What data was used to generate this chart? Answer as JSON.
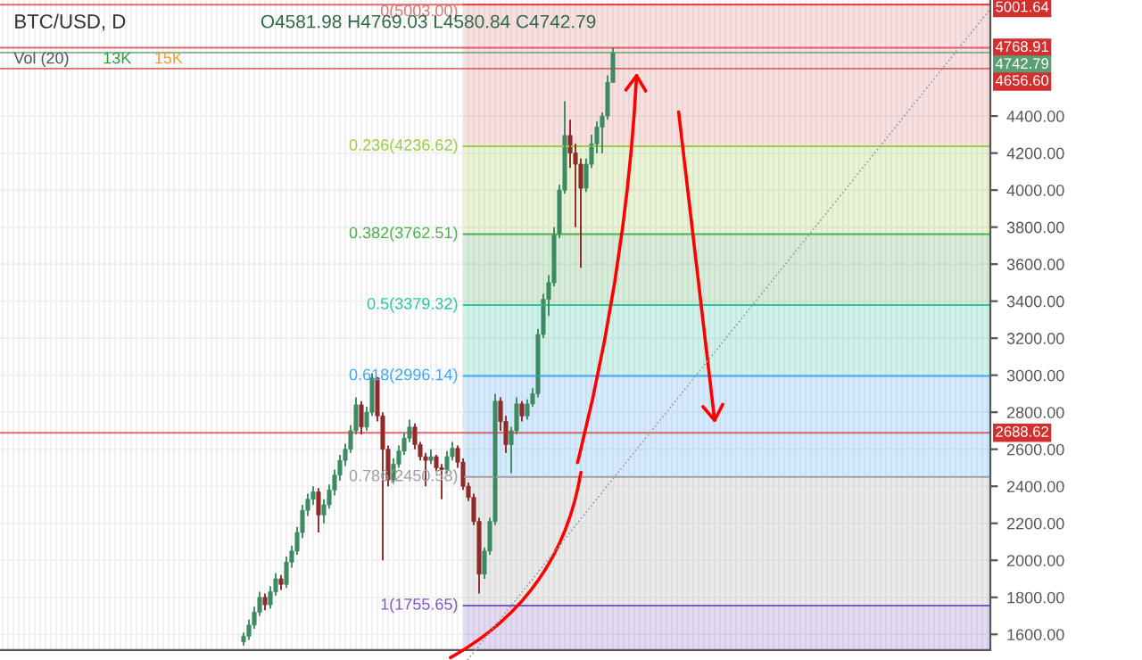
{
  "chart_data": {
    "type": "candlestick",
    "annotations": [
      "BTC/USD, D",
      "O4581.98 H4769.03 L4580.84 C4742.79",
      "Vol (20)",
      "13K",
      "15K"
    ],
    "categories": [
      null,
      null,
      null,
      null,
      null,
      null,
      null,
      null,
      null,
      null,
      null,
      null,
      null,
      null,
      null,
      null,
      null,
      null,
      null,
      null,
      null,
      null,
      null,
      null,
      null,
      null,
      null,
      null,
      null,
      null,
      null,
      null,
      null,
      null,
      null,
      null,
      null,
      null,
      null,
      null,
      null,
      null,
      null,
      null,
      null,
      null,
      null,
      null,
      null,
      null,
      null,
      null,
      null,
      null,
      null,
      null,
      null,
      null,
      null,
      null,
      null,
      null,
      null,
      null,
      null,
      null,
      null,
      null,
      null,
      null,
      null,
      null,
      null,
      null,
      null,
      null,
      null,
      null,
      null,
      null,
      null,
      null,
      null,
      null,
      null,
      null,
      null,
      null,
      null,
      null,
      null,
      null,
      null,
      null,
      null,
      null,
      null,
      null,
      null,
      null,
      null,
      null,
      null,
      null,
      null,
      null,
      null,
      null,
      null,
      null,
      null,
      null,
      null,
      null,
      null,
      null,
      null,
      null,
      null,
      null,
      null,
      null,
      null,
      null,
      null,
      null,
      null,
      null,
      null,
      null,
      null,
      null,
      null,
      null,
      null,
      null,
      null,
      null,
      null,
      null,
      null,
      null,
      null,
      null,
      null,
      null,
      null,
      null,
      null,
      null,
      null,
      null,
      null,
      null,
      null,
      null,
      null,
      null,
      null,
      null,
      null,
      null,
      null,
      null,
      null,
      null,
      null,
      null,
      null,
      null,
      null,
      null,
      null,
      null,
      null,
      null,
      null,
      null,
      null,
      null,
      null,
      null,
      null,
      null,
      null
    ],
    "ohlc": [
      null,
      null,
      null,
      null,
      null,
      null,
      null,
      null,
      null,
      null,
      null,
      null,
      null,
      null,
      null,
      null,
      null,
      null,
      null,
      null,
      null,
      null,
      null,
      null,
      null,
      null,
      null,
      null,
      null,
      null,
      null,
      null,
      null,
      null,
      null,
      null,
      null,
      null,
      null,
      null,
      null,
      null,
      null,
      null,
      null,
      [
        1560,
        1610,
        1540,
        1590
      ],
      [
        1590,
        1680,
        1570,
        1650
      ],
      [
        1650,
        1750,
        1630,
        1720
      ],
      [
        1720,
        1830,
        1700,
        1800
      ],
      [
        1800,
        1820,
        1730,
        1760
      ],
      [
        1760,
        1860,
        1740,
        1830
      ],
      [
        1830,
        1930,
        1810,
        1900
      ],
      [
        1900,
        1920,
        1840,
        1870
      ],
      [
        1870,
        2020,
        1850,
        1990
      ],
      [
        1990,
        2080,
        1960,
        2050
      ],
      [
        2050,
        2180,
        2030,
        2150
      ],
      [
        2150,
        2300,
        2120,
        2270
      ],
      [
        2270,
        2360,
        2240,
        2330
      ],
      [
        2330,
        2400,
        2300,
        2370
      ],
      [
        2370,
        2390,
        2150,
        2245
      ],
      [
        2245,
        2330,
        2200,
        2300
      ],
      [
        2300,
        2410,
        2280,
        2380
      ],
      [
        2380,
        2490,
        2350,
        2460
      ],
      [
        2460,
        2570,
        2430,
        2540
      ],
      [
        2540,
        2630,
        2510,
        2600
      ],
      [
        2600,
        2730,
        2580,
        2700
      ],
      [
        2700,
        2880,
        2680,
        2840
      ],
      [
        2840,
        2860,
        2680,
        2720
      ],
      [
        2720,
        2830,
        2700,
        2800
      ],
      [
        2800,
        3010,
        2780,
        2985
      ],
      [
        2985,
        2990,
        2750,
        2780
      ],
      [
        2780,
        2800,
        2000,
        2600
      ],
      [
        2600,
        2620,
        2400,
        2435
      ],
      [
        2435,
        2550,
        2420,
        2520
      ],
      [
        2520,
        2620,
        2500,
        2590
      ],
      [
        2590,
        2690,
        2570,
        2660
      ],
      [
        2660,
        2760,
        2640,
        2720
      ],
      [
        2720,
        2740,
        2600,
        2625
      ],
      [
        2625,
        2640,
        2540,
        2560
      ],
      [
        2560,
        2580,
        2400,
        2540
      ],
      [
        2540,
        2600,
        2520,
        2560
      ],
      [
        2560,
        2570,
        2480,
        2500
      ],
      [
        2500,
        2520,
        2330,
        2490
      ],
      [
        2490,
        2590,
        2470,
        2560
      ],
      [
        2560,
        2640,
        2540,
        2605
      ],
      [
        2605,
        2620,
        2500,
        2530
      ],
      [
        2530,
        2550,
        2380,
        2400
      ],
      [
        2400,
        2420,
        2320,
        2340
      ],
      [
        2340,
        2360,
        2190,
        2210
      ],
      [
        2210,
        2230,
        1820,
        1925
      ],
      [
        1925,
        2070,
        1900,
        2050
      ],
      [
        2050,
        2230,
        2030,
        2210
      ],
      [
        2210,
        2900,
        2190,
        2860
      ],
      [
        2860,
        2880,
        2700,
        2750
      ],
      [
        2750,
        2780,
        2580,
        2625
      ],
      [
        2625,
        2720,
        2470,
        2700
      ],
      [
        2700,
        2880,
        2680,
        2845
      ],
      [
        2845,
        2860,
        2750,
        2780
      ],
      [
        2780,
        2870,
        2760,
        2845
      ],
      [
        2845,
        2930,
        2830,
        2900
      ],
      [
        2900,
        3250,
        2880,
        3220
      ],
      [
        3220,
        3440,
        3200,
        3410
      ],
      [
        3410,
        3540,
        3320,
        3500
      ],
      [
        3500,
        3800,
        3480,
        3760
      ],
      [
        3760,
        4030,
        3740,
        4000
      ],
      [
        4000,
        4480,
        3980,
        4295
      ],
      [
        4295,
        4380,
        4120,
        4200
      ],
      [
        4200,
        4250,
        3800,
        4140
      ],
      [
        4140,
        4170,
        3580,
        4010
      ],
      [
        4010,
        4170,
        3990,
        4140
      ],
      [
        4140,
        4300,
        4120,
        4250
      ],
      [
        4250,
        4370,
        4200,
        4340
      ],
      [
        4340,
        4420,
        4200,
        4400
      ],
      [
        4400,
        4620,
        4380,
        4581.98
      ],
      [
        4581.98,
        4769.03,
        4580.84,
        4742.79
      ],
      null,
      null,
      null,
      null,
      null,
      null,
      null,
      null,
      null,
      null,
      null,
      null,
      null,
      null,
      null,
      null,
      null,
      null,
      null,
      null,
      null,
      null,
      null,
      null,
      null,
      null,
      null,
      null,
      null,
      null,
      null,
      null,
      null,
      null,
      null,
      null,
      null,
      null,
      null,
      null,
      null,
      null,
      null,
      null,
      null,
      null,
      null,
      null,
      null,
      null,
      null,
      null,
      null,
      null,
      null,
      null,
      null,
      null,
      null,
      null,
      null,
      null,
      null,
      null,
      null,
      null,
      null,
      null,
      null,
      null
    ],
    "colors": [
      null,
      null,
      null,
      null,
      null,
      null,
      null,
      null,
      null,
      null,
      null,
      null,
      null,
      null,
      null,
      null,
      null,
      null,
      null,
      null,
      null,
      null,
      null,
      null,
      null,
      null,
      null,
      null,
      null,
      null,
      null,
      null,
      null,
      null,
      null,
      null,
      null,
      null,
      null,
      null,
      null,
      null,
      null,
      null,
      null,
      "#3d8b63",
      "#3d8b63",
      "#3d8b63",
      "#3d8b63",
      "#8e2b2b",
      "#3d8b63",
      "#3d8b63",
      "#8e2b2b",
      "#3d8b63",
      "#3d8b63",
      "#3d8b63",
      "#3d8b63",
      "#3d8b63",
      "#3d8b63",
      "#8e2b2b",
      "#3d8b63",
      "#3d8b63",
      "#3d8b63",
      "#3d8b63",
      "#3d8b63",
      "#3d8b63",
      "#3d8b63",
      "#8e2b2b",
      "#3d8b63",
      "#3d8b63",
      "#8e2b2b",
      "#8e2b2b",
      "#8e2b2b",
      "#3d8b63",
      "#3d8b63",
      "#3d8b63",
      "#3d8b63",
      "#8e2b2b",
      "#8e2b2b",
      "#8e2b2b",
      "#3d8b63",
      "#8e2b2b",
      "#8e2b2b",
      "#3d8b63",
      "#3d8b63",
      "#8e2b2b",
      "#8e2b2b",
      "#8e2b2b",
      "#8e2b2b",
      "#8e2b2b",
      "#3d8b63",
      "#3d8b63",
      "#3d8b63",
      "#8e2b2b",
      "#8e2b2b",
      "#3d8b63",
      "#3d8b63",
      "#8e2b2b",
      "#3d8b63",
      "#3d8b63",
      "#3d8b63",
      "#3d8b63",
      "#3d8b63",
      "#3d8b63",
      "#3d8b63",
      "#3d8b63",
      "#8e2b2b",
      "#8e2b2b",
      "#8e2b2b",
      "#3d8b63",
      "#3d8b63",
      "#3d8b63",
      "#3d8b63",
      "#3d8b63",
      "#3d8b63",
      null,
      null,
      null,
      null,
      null,
      null,
      null,
      null,
      null,
      null,
      null,
      null,
      null,
      null,
      null,
      null,
      null,
      null,
      null,
      null,
      null,
      null,
      null,
      null,
      null,
      null,
      null,
      null,
      null,
      null,
      null,
      null,
      null,
      null,
      null,
      null,
      null,
      null,
      null,
      null,
      null,
      null,
      null,
      null,
      null,
      null,
      null,
      null,
      null,
      null,
      null,
      null,
      null,
      null,
      null,
      null,
      null,
      null,
      null,
      null,
      null,
      null,
      null,
      null,
      null,
      null,
      null,
      null,
      null,
      null
    ],
    "ylim": [
      1515,
      5027
    ],
    "yticks": [
      {
        "value": 1600,
        "label": "1600.00"
      },
      {
        "value": 1800,
        "label": "1800.00"
      },
      {
        "value": 2000,
        "label": "2000.00"
      },
      {
        "value": 2200,
        "label": "2200.00"
      },
      {
        "value": 2400,
        "label": "2400.00"
      },
      {
        "value": 2600,
        "label": "2600.00"
      },
      {
        "value": 2800,
        "label": "2800.00"
      },
      {
        "value": 3000,
        "label": "3000.00"
      },
      {
        "value": 3200,
        "label": "3200.00"
      },
      {
        "value": 3400,
        "label": "3400.00"
      },
      {
        "value": 3600,
        "label": "3600.00"
      },
      {
        "value": 3800,
        "label": "3800.00"
      },
      {
        "value": 4000,
        "label": "4000.00"
      },
      {
        "value": 4200,
        "label": "4200.00"
      },
      {
        "value": 4400,
        "label": "4400.00"
      }
    ],
    "grid": true,
    "tick_labels": "y",
    "ref_lines": [
      {
        "axis": "y",
        "value": 5001.64,
        "label": "5001.64",
        "color": "#d32f2f"
      },
      {
        "axis": "y",
        "value": 4768.91,
        "label": "4768.91",
        "color": "#d32f2f"
      },
      {
        "axis": "y",
        "value": 4742.79,
        "label": "4742.79",
        "color": "#5a9e74"
      },
      {
        "axis": "y",
        "value": 4656.6,
        "label": "4656.60",
        "color": "#d32f2f"
      },
      {
        "axis": "y",
        "value": 2688.62,
        "label": "2688.62",
        "color": "#d32f2f"
      }
    ],
    "bands": [
      {
        "axis": "y",
        "from": 4236.62,
        "to": 5003.0,
        "label": "0(5003.00)",
        "color": "#e57373"
      },
      {
        "axis": "y",
        "from": 3762.51,
        "to": 4236.62,
        "label": "0.236(4236.62)",
        "color": "#9ccc45"
      },
      {
        "axis": "y",
        "from": 3379.32,
        "to": 3762.51,
        "label": "0.382(3762.51)",
        "color": "#4caf50"
      },
      {
        "axis": "y",
        "from": 2996.14,
        "to": 3379.32,
        "label": "0.5(3379.32)",
        "color": "#26c6a0"
      },
      {
        "axis": "y",
        "from": 2450.58,
        "to": 2996.14,
        "label": "0.618(2996.14)",
        "color": "#42a5f5"
      },
      {
        "axis": "y",
        "from": 1755.65,
        "to": 2450.58,
        "label": "0.786(2450.58)",
        "color": "#9e9e9e"
      },
      {
        "axis": "y",
        "from": 1515,
        "to": 1755.65,
        "label": "1(1755.65)",
        "color": "#7e57c2"
      }
    ]
  }
}
